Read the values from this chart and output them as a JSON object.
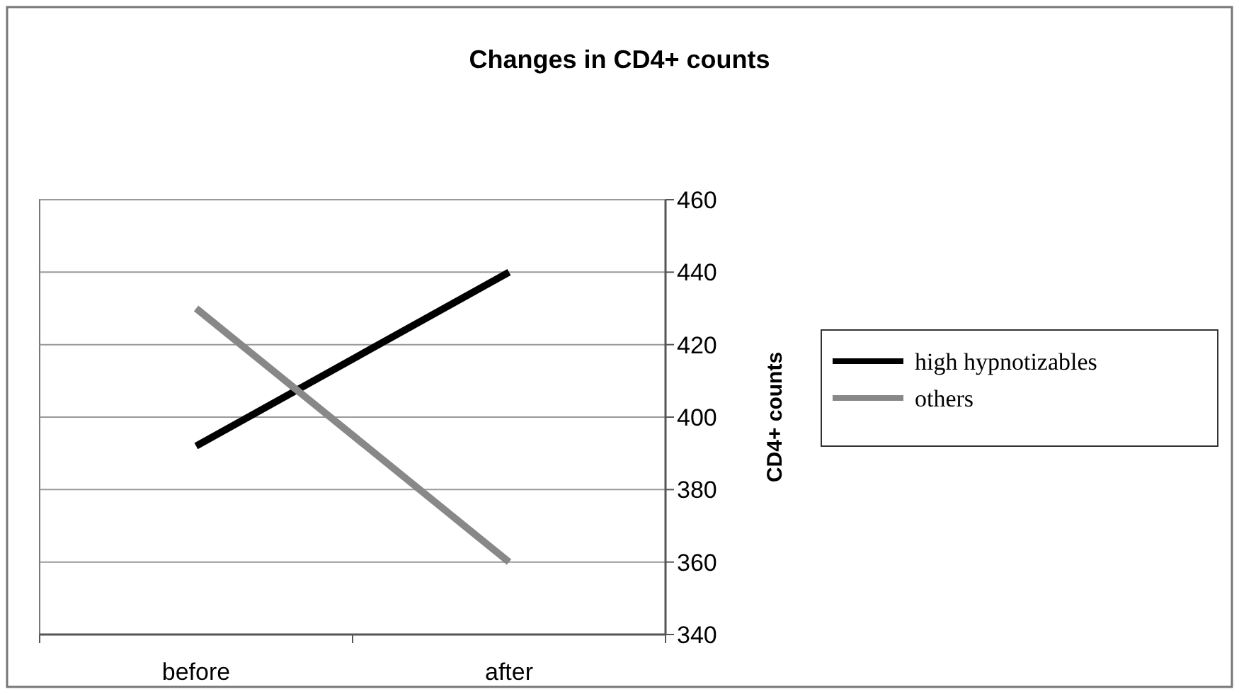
{
  "chart_data": {
    "type": "line",
    "title": "Changes in CD4+ counts",
    "ylabel": "CD4+ counts",
    "categories": [
      "before",
      "after"
    ],
    "series": [
      {
        "name": "high hypnotizables",
        "color": "#000000",
        "values": [
          392,
          440
        ]
      },
      {
        "name": "others",
        "color": "#888888",
        "values": [
          430,
          360
        ]
      }
    ],
    "ylim": [
      340,
      460
    ],
    "yticks": [
      340,
      360,
      380,
      400,
      420,
      440,
      460
    ],
    "grid": "y",
    "legend": "right",
    "marker": "none",
    "line_style": "solid"
  }
}
